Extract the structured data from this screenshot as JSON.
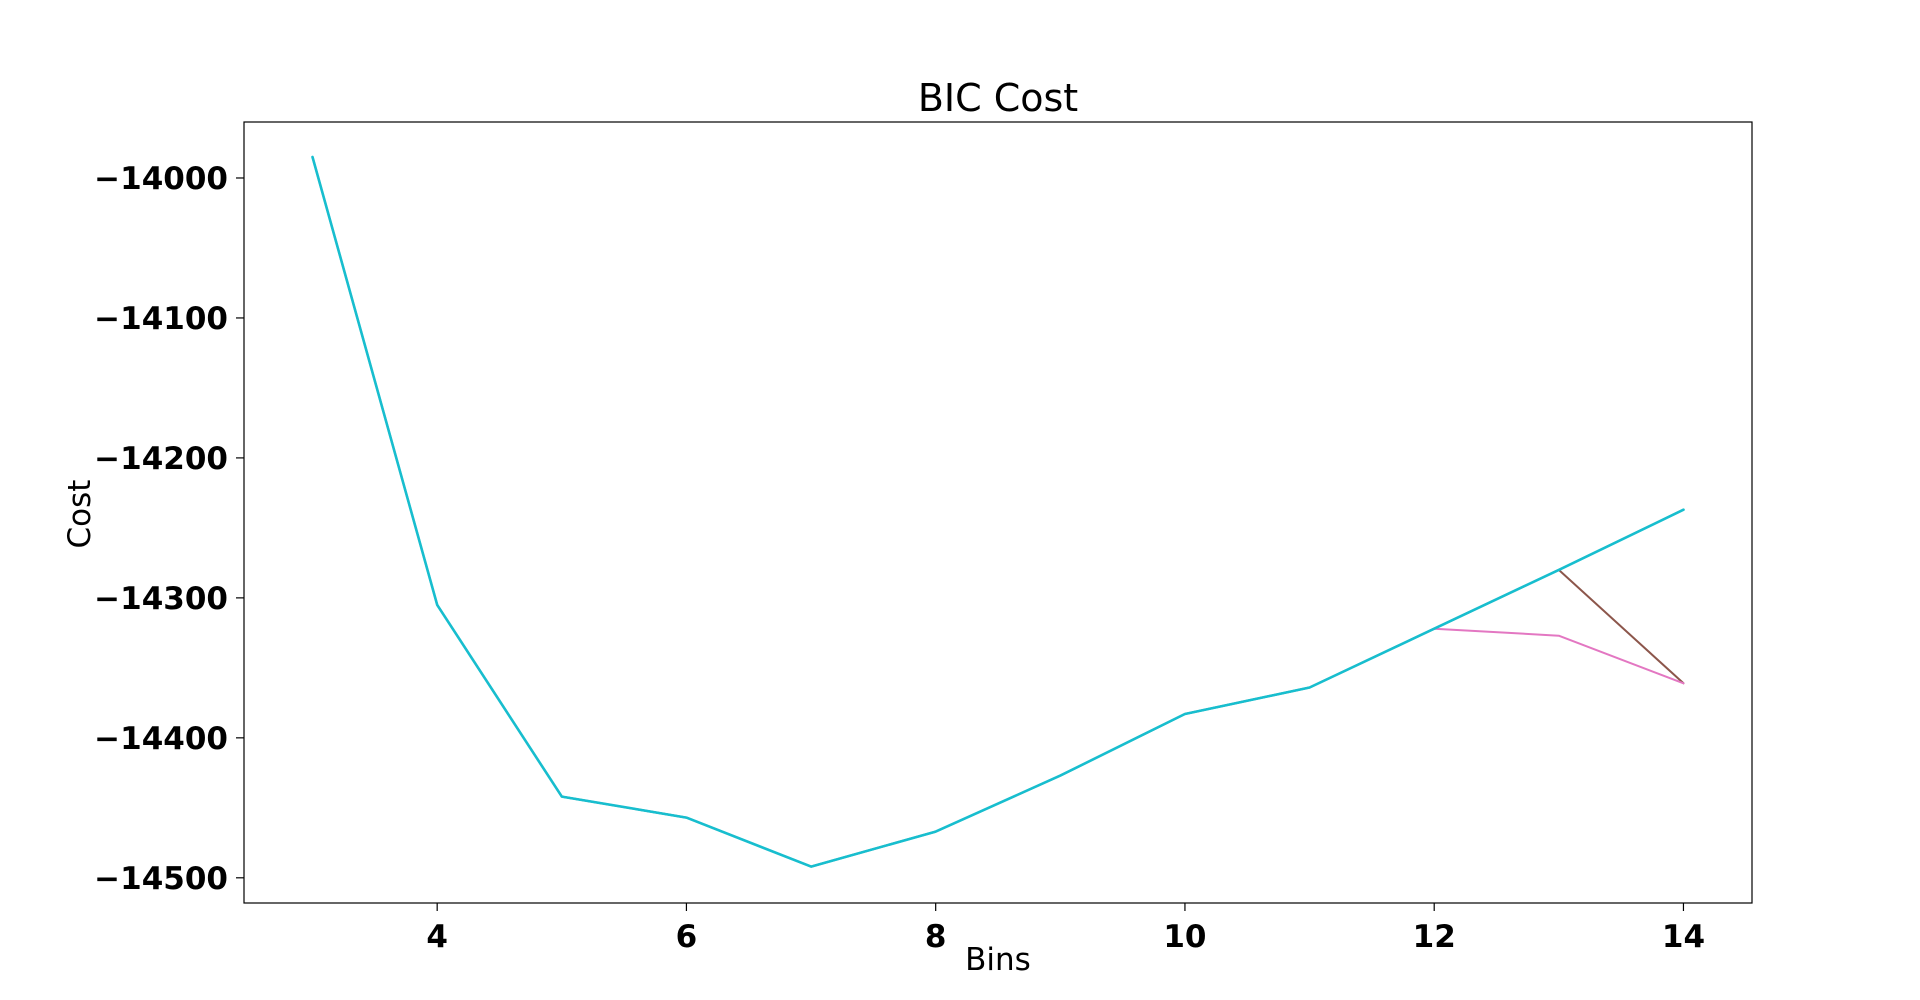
{
  "chart_data": {
    "type": "line",
    "title": "BIC Cost",
    "xlabel": "Bins",
    "ylabel": "Cost",
    "xlim": [
      2.45,
      14.55
    ],
    "ylim": [
      -14518,
      -13960
    ],
    "xticks": [
      4,
      6,
      8,
      10,
      12,
      14
    ],
    "xtick_labels": [
      "4",
      "6",
      "8",
      "10",
      "12",
      "14"
    ],
    "yticks": [
      -14000,
      -14100,
      -14200,
      -14300,
      -14400,
      -14500
    ],
    "ytick_labels": [
      "−14000",
      "−14100",
      "−14200",
      "−14300",
      "−14400",
      "−14500"
    ],
    "grid": false,
    "legend": "none",
    "series": [
      {
        "color": "#8c564b",
        "x": [
          3,
          4,
          5,
          6,
          7,
          8,
          9,
          10,
          11,
          12,
          13,
          14
        ],
        "values": [
          -13985,
          -14305,
          -14442,
          -14457,
          -14492,
          -14467,
          -14427,
          -14383,
          -14364,
          -14322,
          -14280,
          -14361
        ]
      },
      {
        "color": "#e377c2",
        "x": [
          3,
          4,
          5,
          6,
          7,
          8,
          9,
          10,
          11,
          12,
          13,
          14
        ],
        "values": [
          -13985,
          -14305,
          -14442,
          -14457,
          -14492,
          -14467,
          -14427,
          -14383,
          -14364,
          -14322,
          -14327,
          -14361
        ]
      },
      {
        "color": "#7f7f7f",
        "x": [
          3,
          4,
          5,
          6,
          7,
          8,
          9,
          10,
          11,
          12,
          13,
          14
        ],
        "values": [
          -13985,
          -14305,
          -14442,
          -14457,
          -14492,
          -14467,
          -14427,
          -14383,
          -14364,
          -14322,
          -14280,
          -14237
        ]
      },
      {
        "color": "#bcbd22",
        "x": [
          3,
          4,
          5,
          6,
          7,
          8,
          9,
          10,
          11,
          12,
          13,
          14
        ],
        "values": [
          -13985,
          -14305,
          -14442,
          -14457,
          -14492,
          -14467,
          -14427,
          -14383,
          -14364,
          -14322,
          -14280,
          -14237
        ]
      },
      {
        "color": "#17becf",
        "x": [
          3,
          4,
          5,
          6,
          7,
          8,
          9,
          10,
          11,
          12,
          13,
          14
        ],
        "values": [
          -13985,
          -14305,
          -14442,
          -14457,
          -14492,
          -14467,
          -14427,
          -14383,
          -14364,
          -14322,
          -14280,
          -14237
        ]
      }
    ]
  }
}
